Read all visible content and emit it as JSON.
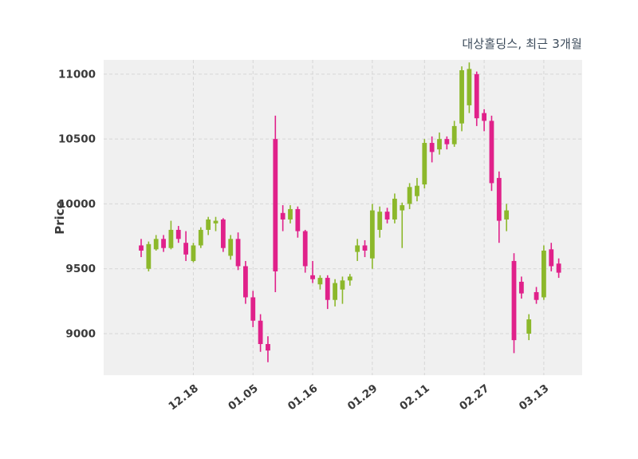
{
  "header": {
    "title": "대상홀딩스, 최근 3개월"
  },
  "chart_data": {
    "type": "candlestick",
    "title": "대상홀딩스, 최근 3개월",
    "ylabel": "Price",
    "ylim": [
      8680,
      11110
    ],
    "yticks": [
      9000,
      9500,
      10000,
      10500,
      11000
    ],
    "xticks": [
      {
        "pos": 7,
        "label": "12.18"
      },
      {
        "pos": 15,
        "label": "01.05"
      },
      {
        "pos": 23,
        "label": "01.16"
      },
      {
        "pos": 31,
        "label": "01.29"
      },
      {
        "pos": 38,
        "label": "02.11"
      },
      {
        "pos": 46,
        "label": "02.27"
      },
      {
        "pos": 54,
        "label": "03.13"
      }
    ],
    "grid": "dashed",
    "legend": "none",
    "colors": {
      "up": "#8cb82b",
      "down": "#e0218a",
      "plot_bg": "#f0f0f0",
      "grid": "#d6d6d6",
      "title": "#3b4a5a",
      "tick": "#3a3a3a",
      "figure_bg": "#ffffff"
    },
    "ohlc_order": [
      "open",
      "high",
      "low",
      "close"
    ],
    "candles": [
      [
        9680,
        9730,
        9590,
        9640
      ],
      [
        9500,
        9710,
        9480,
        9690
      ],
      [
        9650,
        9760,
        9640,
        9730
      ],
      [
        9730,
        9760,
        9630,
        9660
      ],
      [
        9660,
        9870,
        9650,
        9800
      ],
      [
        9800,
        9830,
        9700,
        9730
      ],
      [
        9700,
        9790,
        9560,
        9610
      ],
      [
        9560,
        9700,
        9550,
        9680
      ],
      [
        9680,
        9820,
        9660,
        9800
      ],
      [
        9800,
        9900,
        9760,
        9880
      ],
      [
        9850,
        9900,
        9790,
        9870
      ],
      [
        9880,
        9890,
        9630,
        9660
      ],
      [
        9600,
        9760,
        9570,
        9730
      ],
      [
        9730,
        9780,
        9490,
        9520
      ],
      [
        9520,
        9560,
        9230,
        9280
      ],
      [
        9280,
        9330,
        9050,
        9100
      ],
      [
        9100,
        9150,
        8860,
        8920
      ],
      [
        8920,
        8980,
        8780,
        8870
      ],
      [
        10500,
        10680,
        9320,
        9480
      ],
      [
        9930,
        9990,
        9790,
        9880
      ],
      [
        9880,
        9990,
        9850,
        9960
      ],
      [
        9960,
        9980,
        9740,
        9790
      ],
      [
        9790,
        9800,
        9470,
        9520
      ],
      [
        9450,
        9560,
        9390,
        9420
      ],
      [
        9380,
        9450,
        9340,
        9430
      ],
      [
        9430,
        9450,
        9190,
        9260
      ],
      [
        9260,
        9420,
        9210,
        9390
      ],
      [
        9340,
        9440,
        9230,
        9410
      ],
      [
        9410,
        9460,
        9370,
        9440
      ],
      [
        9630,
        9730,
        9560,
        9680
      ],
      [
        9680,
        9720,
        9590,
        9640
      ],
      [
        9580,
        10000,
        9500,
        9950
      ],
      [
        9800,
        9980,
        9740,
        9940
      ],
      [
        9940,
        9970,
        9850,
        9880
      ],
      [
        9880,
        10080,
        9850,
        10040
      ],
      [
        9950,
        10010,
        9660,
        9990
      ],
      [
        10000,
        10160,
        9960,
        10130
      ],
      [
        10060,
        10200,
        10020,
        10140
      ],
      [
        10150,
        10500,
        10120,
        10470
      ],
      [
        10470,
        10520,
        10320,
        10400
      ],
      [
        10420,
        10550,
        10380,
        10500
      ],
      [
        10500,
        10520,
        10420,
        10460
      ],
      [
        10460,
        10640,
        10440,
        10600
      ],
      [
        10620,
        11060,
        10560,
        11030
      ],
      [
        10760,
        11090,
        10700,
        11040
      ],
      [
        11000,
        11020,
        10600,
        10660
      ],
      [
        10700,
        10730,
        10560,
        10640
      ],
      [
        10640,
        10680,
        10100,
        10160
      ],
      [
        10200,
        10250,
        9700,
        9870
      ],
      [
        9880,
        10000,
        9790,
        9950
      ],
      [
        9560,
        9620,
        8850,
        8950
      ],
      [
        9400,
        9440,
        9270,
        9310
      ],
      [
        9000,
        9150,
        8950,
        9110
      ],
      [
        9320,
        9360,
        9230,
        9260
      ],
      [
        9280,
        9680,
        9260,
        9640
      ],
      [
        9650,
        9700,
        9480,
        9520
      ],
      [
        9540,
        9580,
        9430,
        9470
      ]
    ]
  }
}
